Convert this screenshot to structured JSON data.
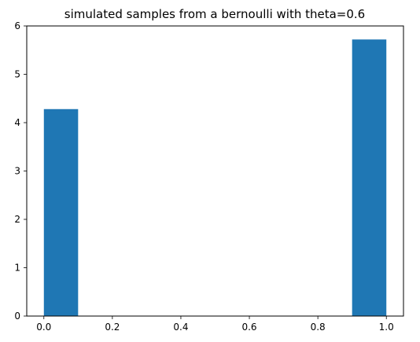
{
  "chart_data": {
    "type": "bar",
    "title": "simulated samples from a bernoulli with theta=0.6",
    "xlabel": "",
    "ylabel": "",
    "xlim": [
      -0.05,
      1.05
    ],
    "ylim": [
      0,
      6
    ],
    "xticks": [
      "0.0",
      "0.2",
      "0.4",
      "0.6",
      "0.8",
      "1.0"
    ],
    "yticks": [
      "0",
      "1",
      "2",
      "3",
      "4",
      "5",
      "6"
    ],
    "bars": [
      {
        "x0": 0.0,
        "x1": 0.1,
        "value": 4.28
      },
      {
        "x0": 0.9,
        "x1": 1.0,
        "value": 5.72
      }
    ],
    "bar_color": "#1f77b4",
    "grid": false,
    "legend": "none"
  }
}
